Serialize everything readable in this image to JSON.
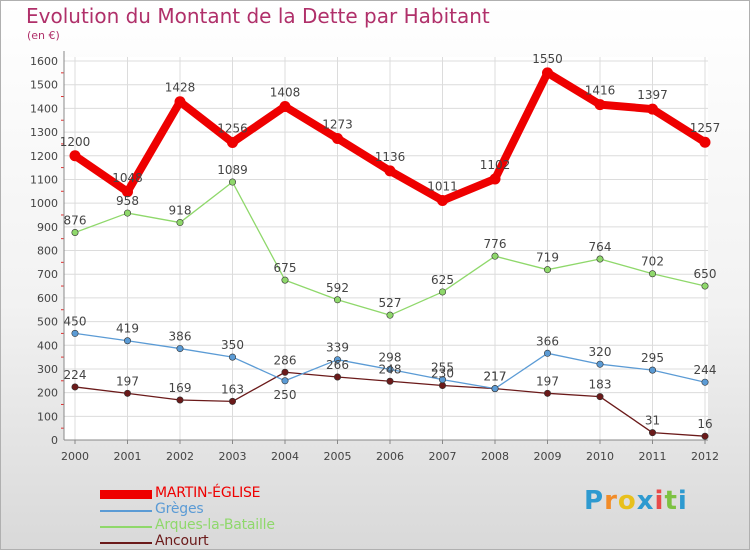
{
  "chart_data": {
    "type": "line",
    "title": "Evolution du Montant de la Dette par Habitant",
    "subtitle": "(en €)",
    "categories": [
      "2000",
      "2001",
      "2002",
      "2003",
      "2004",
      "2005",
      "2006",
      "2007",
      "2008",
      "2009",
      "2010",
      "2011",
      "2012"
    ],
    "y_ticks": [
      "0",
      "100",
      "200",
      "300",
      "400",
      "500",
      "600",
      "700",
      "800",
      "900",
      "1000",
      "1100",
      "1200",
      "1300",
      "1400",
      "1500",
      "1600"
    ],
    "ylim": [
      0,
      1600
    ],
    "grid": true,
    "legend_position": "bottom-left",
    "series": [
      {
        "name": "MARTIN-ÉGLISE",
        "color": "#ee0000",
        "values": [
          1200,
          1048,
          1428,
          1256,
          1408,
          1273,
          1136,
          1011,
          1102,
          1550,
          1416,
          1397,
          1257
        ],
        "labels": [
          "1200",
          "1048",
          "1428",
          "1256",
          "1408",
          "1273",
          "1136",
          "1011",
          "1102",
          "1550",
          "1416",
          "1397",
          "1257"
        ]
      },
      {
        "name": "Grèges",
        "color": "#5b9bd5",
        "values": [
          450,
          419,
          386,
          350,
          250,
          339,
          298,
          255,
          217,
          366,
          320,
          295,
          244
        ],
        "labels": [
          "450",
          "419",
          "386",
          "350",
          "",
          "339",
          "298",
          "255",
          "217",
          "366",
          "320",
          "295",
          "244"
        ]
      },
      {
        "name": "Arques-la-Bataille",
        "color": "#8fd86b",
        "values": [
          876,
          958,
          918,
          1089,
          675,
          592,
          527,
          625,
          776,
          719,
          764,
          702,
          650
        ],
        "labels": [
          "876",
          "958",
          "918",
          "1089",
          "675",
          "592",
          "527",
          "625",
          "776",
          "719",
          "764",
          "702",
          "650"
        ]
      },
      {
        "name": "Ancourt",
        "color": "#6b1a1a",
        "values": [
          224,
          197,
          169,
          163,
          286,
          266,
          248,
          230,
          217,
          197,
          183,
          31,
          16
        ],
        "labels": [
          "224",
          "197",
          "169",
          "163",
          "286",
          "266",
          "248",
          "230",
          "217",
          "197",
          "183",
          "31",
          "16"
        ]
      }
    ],
    "extra_labels": [
      {
        "series": 1,
        "index": 4,
        "text": "250"
      }
    ]
  },
  "brand": {
    "letters": [
      "P",
      "r",
      "o",
      "x",
      "i",
      "t",
      "i"
    ],
    "colors": [
      "#2e9ad0",
      "#f28c28",
      "#e8c01c",
      "#2e9ad0",
      "#e84a4a",
      "#7dc242",
      "#2e9ad0"
    ]
  }
}
